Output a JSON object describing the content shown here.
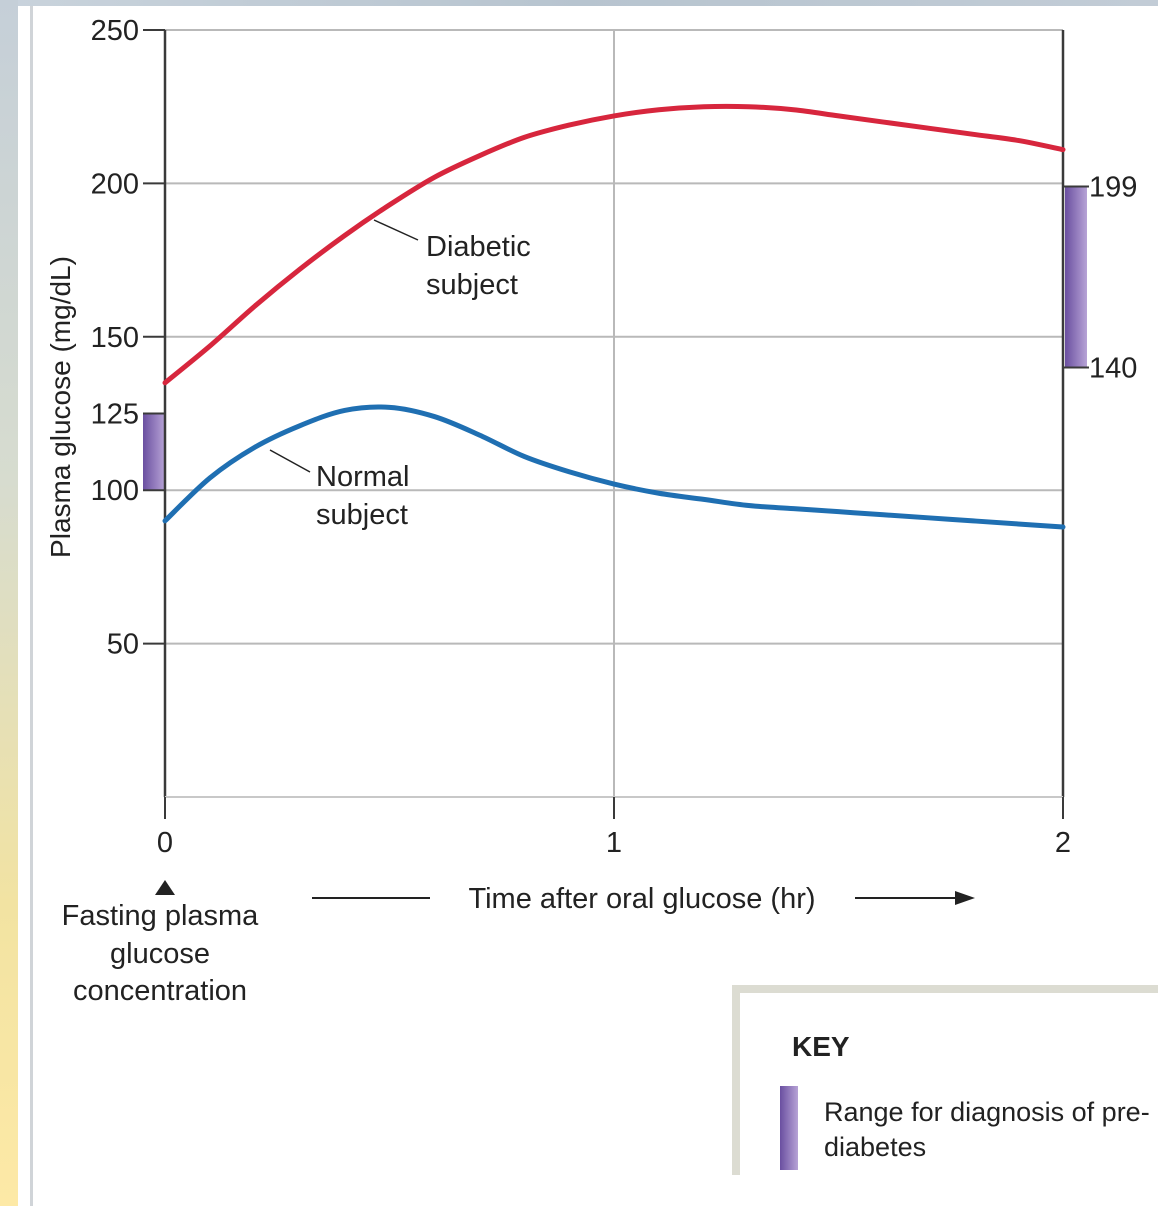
{
  "chart_data": {
    "type": "line",
    "ylabel": "Plasma glucose (mg/dL)",
    "xlabel": "Time after oral glucose (hr)",
    "xlim": [
      0,
      2
    ],
    "ylim": [
      0,
      250
    ],
    "x_ticks": [
      "0",
      "1",
      "2"
    ],
    "y_ticks": [
      "50",
      "100",
      "125",
      "150",
      "200",
      "250"
    ],
    "right_ticks": [
      "199",
      "140"
    ],
    "series": [
      {
        "name": "Diabetic subject",
        "color": "#d7263d",
        "x": [
          0,
          0.1,
          0.2,
          0.3,
          0.4,
          0.5,
          0.6,
          0.7,
          0.8,
          0.9,
          1.0,
          1.1,
          1.2,
          1.3,
          1.4,
          1.5,
          1.6,
          1.7,
          1.8,
          1.9,
          2.0
        ],
        "y": [
          135,
          147,
          160,
          172,
          183,
          193,
          202,
          209,
          215,
          219,
          222,
          224,
          225,
          225,
          224,
          222,
          220,
          218,
          216,
          214,
          211
        ]
      },
      {
        "name": "Normal subject",
        "color": "#1f6fb2",
        "x": [
          0,
          0.1,
          0.2,
          0.3,
          0.4,
          0.5,
          0.6,
          0.7,
          0.8,
          0.9,
          1.0,
          1.1,
          1.2,
          1.3,
          1.4,
          1.5,
          1.6,
          1.7,
          1.8,
          1.9,
          2.0
        ],
        "y": [
          90,
          104,
          114,
          121,
          126,
          127,
          124,
          118,
          111,
          106,
          102,
          99,
          97,
          95,
          94,
          93,
          92,
          91,
          90,
          89,
          88
        ]
      }
    ],
    "prediabetes_ranges": [
      {
        "axis": "fasting",
        "low": 100,
        "high": 125
      },
      {
        "axis": "2hr",
        "low": 140,
        "high": 199
      }
    ],
    "annotations": [
      "Diabetic subject",
      "Normal subject",
      "Fasting plasma glucose concentration"
    ]
  },
  "labels": {
    "diabetic_line1": "Diabetic",
    "diabetic_line2": "subject",
    "normal_line1": "Normal",
    "normal_line2": "subject",
    "fasting": "Fasting plasma glucose concentration"
  },
  "key": {
    "title": "KEY",
    "entry": "Range for diagnosis of pre-diabetes",
    "swatch_color": "#8a6fc0"
  }
}
